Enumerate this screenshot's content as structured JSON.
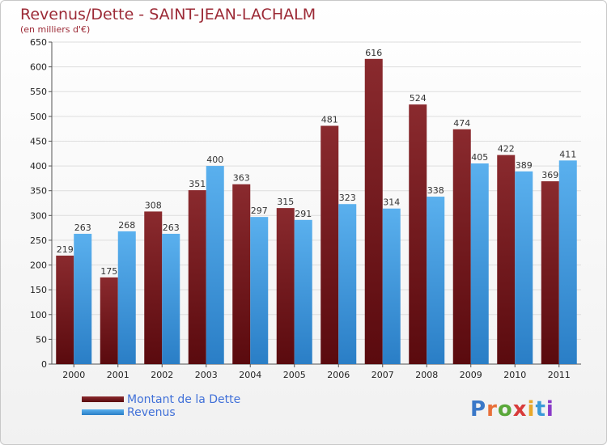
{
  "header": {
    "title": "Revenus/Dette - SAINT-JEAN-LACHALM",
    "subtitle": "(en milliers d'€)"
  },
  "legend": {
    "dette_label": "Montant de la Dette",
    "revenus_label": "Revenus"
  },
  "logo": {
    "text": "Proxiti"
  },
  "colors": {
    "dette_top": "#8a2a2e",
    "dette_bottom": "#5a0a0e",
    "revenus_top": "#5ab0ee",
    "revenus_bottom": "#2a7ec6",
    "grid": "#dddddd",
    "title": "#9c2a36"
  },
  "chart_data": {
    "type": "bar",
    "title": "Revenus/Dette - SAINT-JEAN-LACHALM",
    "ylabel": "(en milliers d'€)",
    "xlabel": "",
    "categories": [
      "2000",
      "2001",
      "2002",
      "2003",
      "2004",
      "2005",
      "2006",
      "2007",
      "2008",
      "2009",
      "2010",
      "2011"
    ],
    "series": [
      {
        "name": "Montant de la Dette",
        "values": [
          219,
          175,
          308,
          351,
          363,
          315,
          481,
          616,
          524,
          474,
          422,
          369
        ]
      },
      {
        "name": "Revenus",
        "values": [
          263,
          268,
          263,
          400,
          297,
          291,
          323,
          314,
          338,
          405,
          389,
          411
        ]
      }
    ],
    "ylim": [
      0,
      650
    ],
    "yticks": [
      0,
      50,
      100,
      150,
      200,
      250,
      300,
      350,
      400,
      450,
      500,
      550,
      600,
      650
    ],
    "grid": true,
    "legend": "bottom-left"
  }
}
